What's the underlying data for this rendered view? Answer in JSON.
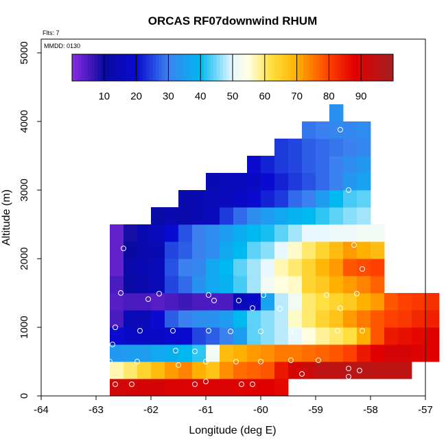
{
  "chart_data": {
    "type": "heatmap",
    "title": "ORCAS RF07downwind RHUM",
    "flights_label": "Flts: 7",
    "mmdd_label": "MMDD: 0130",
    "xlabel": "Longitude (deg E)",
    "ylabel": "Altitude (m)",
    "xlim": [
      -64,
      -57
    ],
    "ylim": [
      0,
      5200
    ],
    "x_ticks": [
      -64,
      -63,
      -62,
      -61,
      -60,
      -59,
      -58,
      -57
    ],
    "y_ticks": [
      0,
      1000,
      2000,
      3000,
      4000,
      5000
    ],
    "colorbar": {
      "range": [
        0,
        100
      ],
      "ticks": [
        10,
        20,
        30,
        40,
        50,
        60,
        70,
        80,
        90
      ],
      "stops": [
        [
          0,
          "#8a2be2"
        ],
        [
          10,
          "#0a0aa0"
        ],
        [
          20,
          "#0a0ad0"
        ],
        [
          30,
          "#3b82f0"
        ],
        [
          40,
          "#00b8f0"
        ],
        [
          50,
          "#e8f8ff"
        ],
        [
          55,
          "#ffffe0"
        ],
        [
          62,
          "#ffe040"
        ],
        [
          70,
          "#ffb000"
        ],
        [
          80,
          "#ff4000"
        ],
        [
          88,
          "#e00000"
        ],
        [
          100,
          "#a52020"
        ]
      ]
    },
    "cells": {
      "cell_width_deg": 0.25,
      "cell_height_m": 250,
      "bins": [
        {
          "alt": 0,
          "lon_start": -62.75,
          "values": [
            91,
            90,
            90,
            90,
            89,
            89,
            89,
            89,
            89,
            89,
            88,
            88,
            87
          ]
        },
        {
          "alt": 250,
          "lon_start": -62.75,
          "values": [
            57,
            60,
            64,
            68,
            72,
            74,
            70,
            67,
            73,
            76,
            77,
            78,
            85,
            90,
            92,
            95,
            95,
            96,
            96,
            95,
            95,
            95
          ]
        },
        {
          "alt": 500,
          "lon_start": -62.75,
          "values": [
            34,
            35,
            35,
            37,
            38,
            40,
            42,
            52,
            68,
            70,
            72,
            73,
            75,
            75,
            76,
            77,
            78,
            80,
            85,
            88,
            90,
            90,
            89,
            88
          ]
        },
        {
          "alt": 750,
          "lon_start": -62.75,
          "values": [
            20,
            18,
            17,
            18,
            19,
            20,
            25,
            27,
            30,
            35,
            44,
            46,
            48,
            50,
            55,
            58,
            60,
            62,
            70,
            78,
            85,
            86,
            87,
            88
          ]
        },
        {
          "alt": 1000,
          "lon_start": -62.75,
          "values": [
            5,
            15,
            15,
            20,
            27,
            30,
            32,
            33,
            35,
            40,
            44,
            46,
            48,
            56,
            60,
            64,
            67,
            72,
            75,
            78,
            80,
            81,
            83,
            84
          ]
        },
        {
          "alt": 1250,
          "lon_start": -62.75,
          "values": [
            4,
            5,
            5,
            4,
            5,
            6,
            5,
            5,
            5,
            15,
            18,
            36,
            48,
            52,
            60,
            62,
            64,
            66,
            70,
            72,
            78,
            80,
            81,
            82
          ]
        },
        {
          "alt": 1500,
          "lon_start": -62.75,
          "values": [
            5,
            11,
            13,
            15,
            25,
            28,
            33,
            37,
            39,
            43,
            47,
            52,
            55,
            56,
            64,
            66,
            70,
            72,
            74,
            77
          ]
        },
        {
          "alt": 1750,
          "lon_start": -62.75,
          "values": [
            3,
            12,
            14,
            15,
            26,
            30,
            31,
            37,
            40,
            44,
            47,
            50,
            57,
            60,
            64,
            69,
            72,
            78,
            79,
            80
          ]
        },
        {
          "alt": 2000,
          "lon_start": -62.75,
          "values": [
            3,
            10,
            13,
            14,
            25,
            27,
            30,
            32,
            37,
            40,
            44,
            46,
            50,
            56,
            60,
            64,
            68,
            72,
            70,
            68
          ]
        },
        {
          "alt": 2250,
          "lon_start": -62.75,
          "values": [
            3,
            9,
            14,
            16,
            20,
            26,
            30,
            32,
            35,
            38,
            40,
            41,
            44,
            47,
            50,
            50,
            51,
            51,
            52,
            52
          ]
        },
        {
          "alt": 2500,
          "lon_start": -62,
          "values": [
            11,
            13,
            12,
            14,
            16,
            24,
            28,
            32,
            35,
            37,
            39,
            40,
            42,
            44,
            46,
            47
          ]
        },
        {
          "alt": 2750,
          "lon_start": -61.5,
          "values": [
            13,
            14,
            15,
            16,
            18,
            20,
            22,
            24,
            28,
            30,
            35,
            40,
            43,
            44
          ]
        },
        {
          "alt": 3000,
          "lon_start": -61,
          "values": [
            14,
            15,
            16,
            17,
            20,
            22,
            24,
            26,
            28,
            30,
            34,
            36
          ]
        },
        {
          "alt": 3250,
          "lon_start": -60.25,
          "values": [
            20,
            22,
            24,
            25,
            27,
            28,
            30,
            32,
            34
          ]
        },
        {
          "alt": 3500,
          "lon_start": -59.75,
          "values": [
            24,
            25,
            27,
            28,
            29,
            30,
            31
          ]
        },
        {
          "alt": 3750,
          "lon_start": -59.25,
          "values": [
            29,
            30,
            31,
            31,
            32
          ]
        },
        {
          "alt": 4000,
          "lon_start": -58.75,
          "values": [
            33
          ]
        }
      ]
    },
    "observations": {
      "series_name": "flight sample points",
      "points": [
        [
          -62.65,
          170
        ],
        [
          -62.35,
          170
        ],
        [
          -61.2,
          170
        ],
        [
          -61.0,
          210
        ],
        [
          -60.35,
          170
        ],
        [
          -60.15,
          170
        ],
        [
          -59.25,
          170
        ],
        [
          -62.75,
          500
        ],
        [
          -62.25,
          500
        ],
        [
          -61.5,
          450
        ],
        [
          -61.0,
          500
        ],
        [
          -60.45,
          500
        ],
        [
          -60.0,
          500
        ],
        [
          -59.45,
          520
        ],
        [
          -58.95,
          520
        ],
        [
          -58.4,
          400
        ],
        [
          -58.2,
          370
        ],
        [
          -58.4,
          280
        ],
        [
          -59.25,
          320
        ],
        [
          -62.7,
          750
        ],
        [
          -61.55,
          660
        ],
        [
          -61.2,
          650
        ],
        [
          -62.65,
          1000
        ],
        [
          -62.2,
          950
        ],
        [
          -61.6,
          950
        ],
        [
          -60.95,
          950
        ],
        [
          -60.55,
          940
        ],
        [
          -60.0,
          940
        ],
        [
          -59.45,
          940
        ],
        [
          -58.6,
          950
        ],
        [
          -58.15,
          950
        ],
        [
          -60.15,
          1280
        ],
        [
          -59.65,
          1270
        ],
        [
          -58.55,
          1280
        ],
        [
          -62.55,
          1500
        ],
        [
          -62.05,
          1410
        ],
        [
          -61.85,
          1490
        ],
        [
          -60.95,
          1470
        ],
        [
          -60.85,
          1390
        ],
        [
          -60.4,
          1390
        ],
        [
          -59.95,
          1470
        ],
        [
          -58.8,
          1470
        ],
        [
          -58.25,
          1490
        ],
        [
          -58.15,
          1850
        ],
        [
          -62.5,
          2150
        ],
        [
          -58.3,
          2200
        ],
        [
          -58.4,
          3000
        ],
        [
          -58.55,
          3880
        ]
      ]
    }
  }
}
